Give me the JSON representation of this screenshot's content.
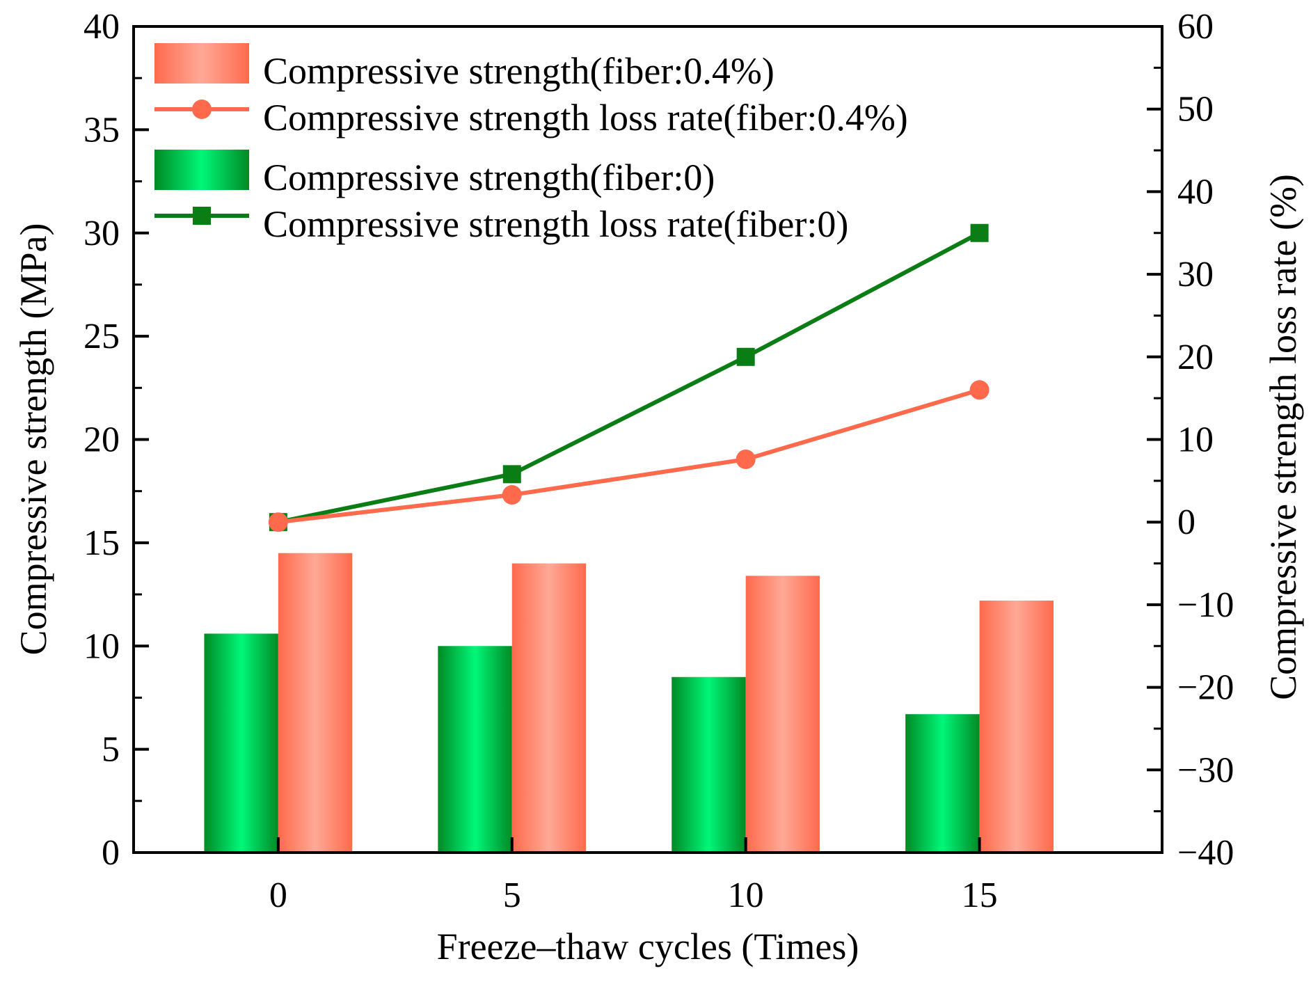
{
  "chart_data": {
    "type": "bar",
    "title": "",
    "xlabel": "Freeze–thaw cycles (Times)",
    "ylabel": "Compressive strength (MPa)",
    "y2label": "Compressive strength loss rate (%)",
    "categories": [
      "0",
      "5",
      "10",
      "15"
    ],
    "ylim": [
      0,
      40
    ],
    "y2lim": [
      -40,
      60
    ],
    "yticks": [
      "0",
      "5",
      "10",
      "15",
      "20",
      "25",
      "30",
      "35",
      "40"
    ],
    "y2ticks": [
      "−40",
      "−30",
      "−20",
      "−10",
      "0",
      "10",
      "20",
      "30",
      "40",
      "50",
      "60"
    ],
    "legend_position": "top-left",
    "series": [
      {
        "name": "Compressive strength(fiber:0.4%)",
        "kind": "bar",
        "axis": "left",
        "color": "#ff6a4d",
        "values": [
          14.5,
          14.0,
          13.4,
          12.2
        ]
      },
      {
        "name": "Compressive strength loss rate(fiber:0.4%)",
        "kind": "line",
        "marker": "circle",
        "axis": "right",
        "color": "#ff6a4d",
        "values": [
          0,
          3.3,
          7.6,
          16.0
        ]
      },
      {
        "name": "Compressive strength(fiber:0)",
        "kind": "bar",
        "axis": "left",
        "color": "#00a83a",
        "values": [
          10.6,
          10.0,
          8.5,
          6.7
        ]
      },
      {
        "name": "Compressive strength loss rate(fiber:0)",
        "kind": "line",
        "marker": "square",
        "axis": "right",
        "color": "#0a7d14",
        "values": [
          0,
          5.8,
          20.0,
          35.0
        ]
      }
    ]
  }
}
